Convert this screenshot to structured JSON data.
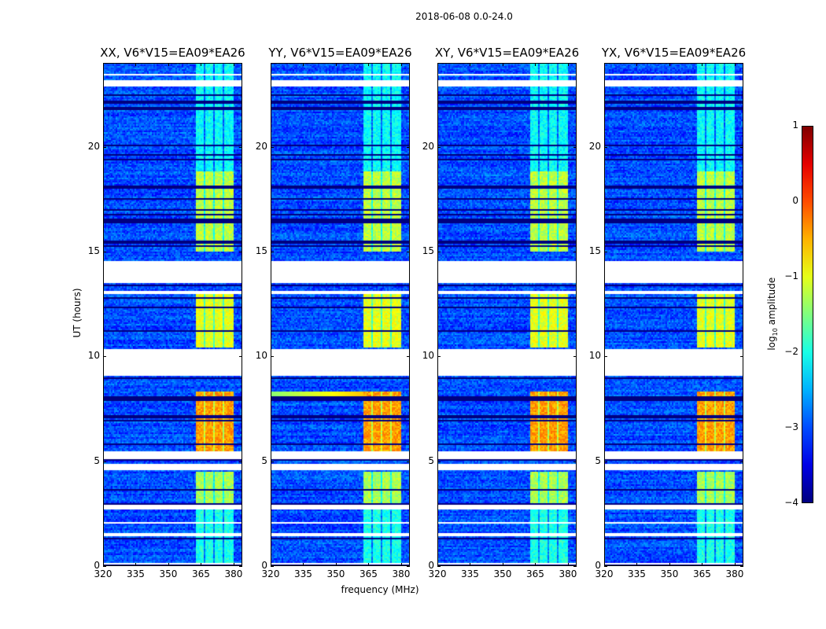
{
  "chart_data": {
    "type": "heatmap",
    "title": "2018-06-08 0.0-24.0",
    "xlabel": "frequency (MHz)",
    "ylabel": "UT (hours)",
    "xlim": [
      320,
      384
    ],
    "ylim": [
      0,
      24
    ],
    "xticks": [
      "320",
      "335",
      "350",
      "365",
      "380"
    ],
    "xtick_values": [
      320,
      335,
      350,
      365,
      380
    ],
    "yticks": [
      "0",
      "5",
      "10",
      "15",
      "20"
    ],
    "ytick_values": [
      0,
      5,
      10,
      15,
      20
    ],
    "panels": [
      {
        "title": "XX, V6*V15=EA09*EA26"
      },
      {
        "title": "YY, V6*V15=EA09*EA26"
      },
      {
        "title": "XY, V6*V15=EA09*EA26"
      },
      {
        "title": "YX, V6*V15=EA09*EA26"
      }
    ],
    "colorbar": {
      "label_prefix": "log",
      "label_sub": "10",
      "label_suffix": " amplitude",
      "range": [
        -4,
        1
      ],
      "ticks": [
        "1",
        "0",
        "−1",
        "−2",
        "−3",
        "−4"
      ],
      "tick_values": [
        1,
        0,
        -1,
        -2,
        -3,
        -4
      ],
      "colormap": "jet"
    },
    "background_level": -3.0,
    "rfi_band_mhz": [
      362,
      380
    ],
    "flagged_hours": [
      [
        0.05,
        0.12
      ],
      [
        1.45,
        1.55
      ],
      [
        2.05,
        2.12
      ],
      [
        2.7,
        2.95
      ],
      [
        4.6,
        4.85
      ],
      [
        5.1,
        5.45
      ],
      [
        9.1,
        10.35
      ],
      [
        13.0,
        13.1
      ],
      [
        13.5,
        14.55
      ],
      [
        22.9,
        23.2
      ],
      [
        23.4,
        23.5
      ]
    ],
    "band_levels": [
      {
        "hours": [
          0,
          2.9
        ],
        "value": -2.0
      },
      {
        "hours": [
          2.9,
          4.5
        ],
        "value": -1.3
      },
      {
        "hours": [
          5.5,
          8.3
        ],
        "value": -0.4
      },
      {
        "hours": [
          10.4,
          13.0
        ],
        "value": -1.0
      },
      {
        "hours": [
          15.0,
          18.8
        ],
        "value": -1.2
      },
      {
        "hours": [
          18.8,
          24
        ],
        "value": -2.1
      }
    ]
  }
}
